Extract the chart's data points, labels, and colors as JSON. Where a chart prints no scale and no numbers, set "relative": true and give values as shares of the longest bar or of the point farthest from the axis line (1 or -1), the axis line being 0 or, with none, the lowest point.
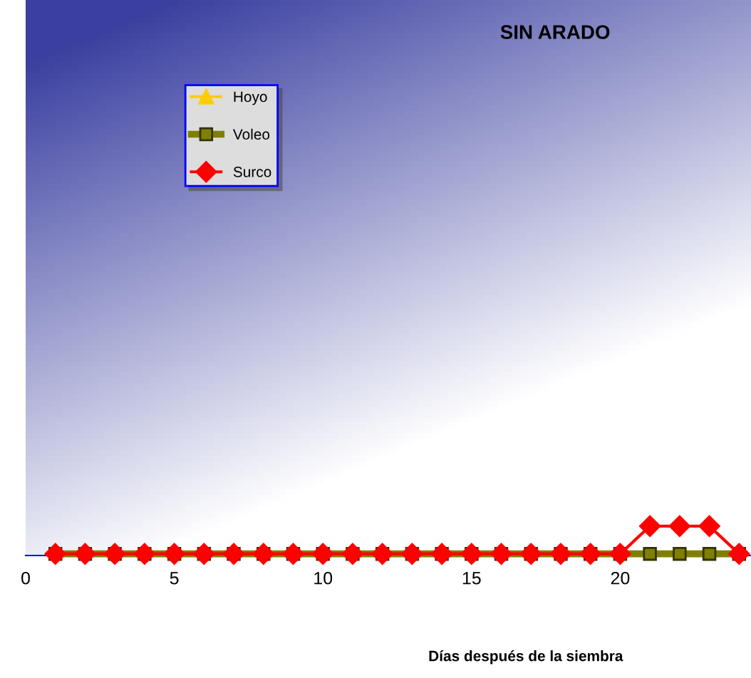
{
  "chart_data": {
    "type": "line",
    "title": "SIN ARADO",
    "xlabel": "Días después de la siembra",
    "relative": true,
    "xlim": [
      0,
      24.4
    ],
    "xticks": [
      0,
      5,
      10,
      15,
      20
    ],
    "x": [
      1,
      2,
      3,
      4,
      5,
      6,
      7,
      8,
      9,
      10,
      11,
      12,
      13,
      14,
      15,
      16,
      17,
      18,
      19,
      20,
      21,
      22,
      23,
      24
    ],
    "series": [
      {
        "name": "Hoyo",
        "color": "#ffcc00",
        "marker": "triangle",
        "values": [
          null,
          null,
          null,
          null,
          null,
          null,
          null,
          null,
          null,
          null,
          null,
          null,
          null,
          null,
          null,
          null,
          null,
          null,
          null,
          null,
          null,
          null,
          null,
          null
        ]
      },
      {
        "name": "Voleo",
        "color": "#808000",
        "marker": "square",
        "values": [
          0,
          0,
          0,
          0,
          0,
          0,
          0,
          0,
          0,
          0,
          0,
          0,
          0,
          0,
          0,
          0,
          0,
          0,
          0,
          0,
          0,
          0,
          0,
          0
        ]
      },
      {
        "name": "Surco",
        "color": "#ff0000",
        "marker": "diamond",
        "values": [
          0,
          0,
          0,
          0,
          0,
          0,
          0,
          0,
          0,
          0,
          0,
          0,
          0,
          0,
          0,
          0,
          0,
          0,
          0,
          0,
          1,
          1,
          1,
          0
        ]
      }
    ],
    "legend": "top left",
    "grid": false
  }
}
